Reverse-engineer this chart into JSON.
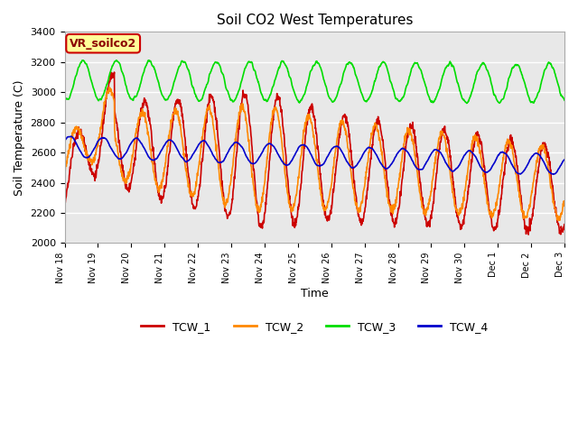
{
  "title": "Soil CO2 West Temperatures",
  "ylabel": "Soil Temperature (C)",
  "xlabel": "Time",
  "ylim": [
    2000,
    3400
  ],
  "bg_color": "#e8e8e8",
  "fig_color": "#ffffff",
  "series": {
    "TCW_1": {
      "color": "#cc0000",
      "linewidth": 1.2
    },
    "TCW_2": {
      "color": "#ff8800",
      "linewidth": 1.2
    },
    "TCW_3": {
      "color": "#00dd00",
      "linewidth": 1.2
    },
    "TCW_4": {
      "color": "#0000cc",
      "linewidth": 1.2
    }
  },
  "vr_label": "VR_soilco2",
  "vr_bg": "#ffff99",
  "vr_border": "#cc0000",
  "xtick_labels": [
    "Nov 18",
    "Nov 19",
    "Nov 20",
    "Nov 21",
    "Nov 22",
    "Nov 23",
    "Nov 24",
    "Nov 25",
    "Nov 26",
    "Nov 27",
    "Nov 28",
    "Nov 29",
    "Nov 30",
    "Dec 1",
    "Dec 2",
    "Dec 3"
  ],
  "legend_entries": [
    "TCW_1",
    "TCW_2",
    "TCW_3",
    "TCW_4"
  ]
}
